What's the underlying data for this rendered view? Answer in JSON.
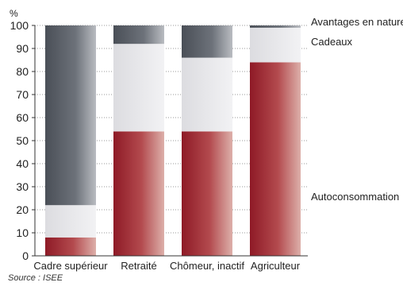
{
  "chart_data": {
    "type": "bar",
    "stacked": true,
    "categories": [
      "Cadre supérieur",
      "Retraité",
      "Chômeur, inactif",
      "Agriculteur"
    ],
    "series": [
      {
        "name": "Autoconsommation",
        "values": [
          8,
          54,
          54,
          84
        ],
        "color": "#a3202c"
      },
      {
        "name": "Cadeaux",
        "values": [
          14,
          38,
          32,
          15
        ],
        "color": "#e4e4e8"
      },
      {
        "name": "Avantages en nature",
        "values": [
          78,
          8,
          14,
          1
        ],
        "color": "#5e636b"
      }
    ],
    "ylim": [
      0,
      100
    ],
    "yticks": [
      0,
      10,
      20,
      30,
      40,
      50,
      60,
      70,
      80,
      90,
      100
    ],
    "yunit": "%",
    "grid": true,
    "legend_placement": "right",
    "source": "Source : ISEE"
  }
}
